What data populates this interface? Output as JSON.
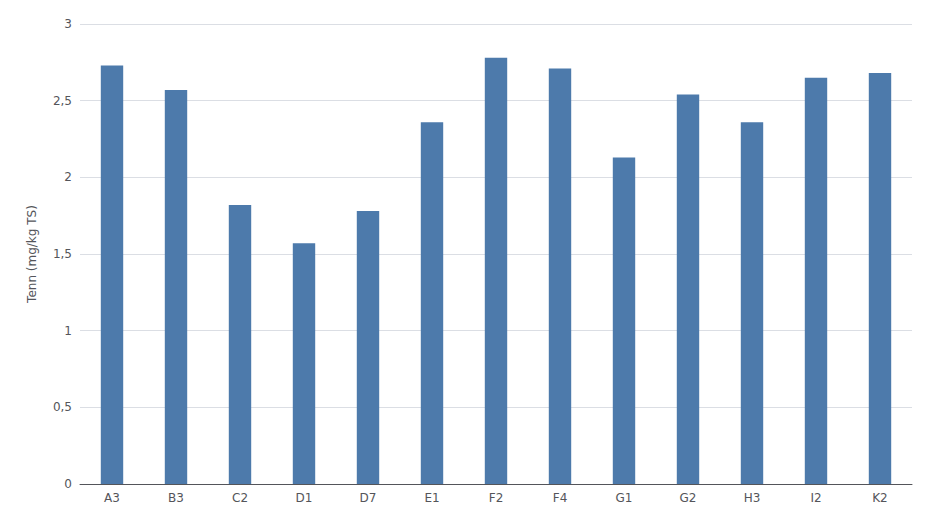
{
  "chart_data": {
    "type": "bar",
    "categories": [
      "A3",
      "B3",
      "C2",
      "D1",
      "D7",
      "E1",
      "F2",
      "F4",
      "G1",
      "G2",
      "H3",
      "I2",
      "K2"
    ],
    "values": [
      2.73,
      2.57,
      1.82,
      1.57,
      1.78,
      2.36,
      2.78,
      2.71,
      2.13,
      2.54,
      2.36,
      2.65,
      2.68
    ],
    "color": "#4d7aab",
    "ylabel": "Tenn (mg/kg TS)",
    "ylim": [
      0,
      3.0
    ],
    "yticks": [
      0,
      {
        "value": 0.5,
        "label": "0,5"
      },
      1,
      {
        "value": 1.5,
        "label": "1,5"
      },
      2,
      {
        "value": 2.5,
        "label": "2,5"
      },
      3
    ],
    "grid": true
  }
}
